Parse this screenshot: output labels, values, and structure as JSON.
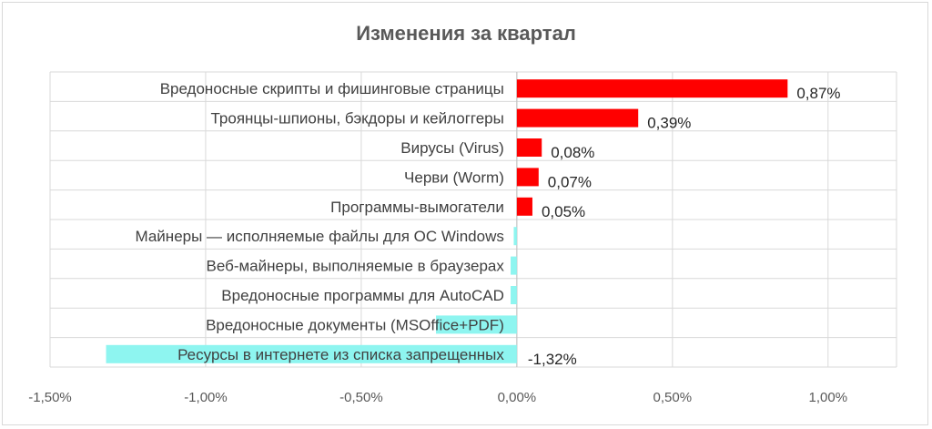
{
  "chart_data": {
    "type": "bar",
    "orientation": "horizontal",
    "title": "Изменения за квартал",
    "xlabel": "",
    "ylabel": "",
    "xlim": [
      -0.015,
      0.0122
    ],
    "grid": true,
    "categories": [
      "Вредоносные скрипты и фишинговые страницы",
      "Троянцы-шпионы, бэкдоры и кейлоггеры",
      "Вирусы (Virus)",
      "Черви (Worm)",
      "Программы-вымогатели",
      "Майнеры — исполняемые файлы для ОС Windows",
      "Веб-майнеры, выполняемые в браузерах",
      "Вредоносные программы для AutoCAD",
      "Вредоносные документы (MSOffice+PDF)",
      "Ресурсы в интернете из списка запрещенных"
    ],
    "values": [
      0.0087,
      0.0039,
      0.0008,
      0.0007,
      0.0005,
      -0.0001,
      -0.0002,
      -0.0002,
      -0.0026,
      -0.0132
    ],
    "data_labels": [
      "0,87%",
      "0,39%",
      "0,08%",
      "0,07%",
      "0,05%",
      "",
      "",
      "",
      "",
      "-1,32%"
    ],
    "x_ticks": [
      -0.015,
      -0.01,
      -0.005,
      0,
      0.005,
      0.01
    ],
    "x_tick_labels": [
      "-1,50%",
      "-1,00%",
      "-0,50%",
      "0,00%",
      "0,50%",
      "1,00%"
    ],
    "colors": {
      "positive": "#ff0000",
      "negative": "#8ef5f0",
      "grid": "#d9d9d9",
      "frame": "#d9d9d9"
    }
  }
}
